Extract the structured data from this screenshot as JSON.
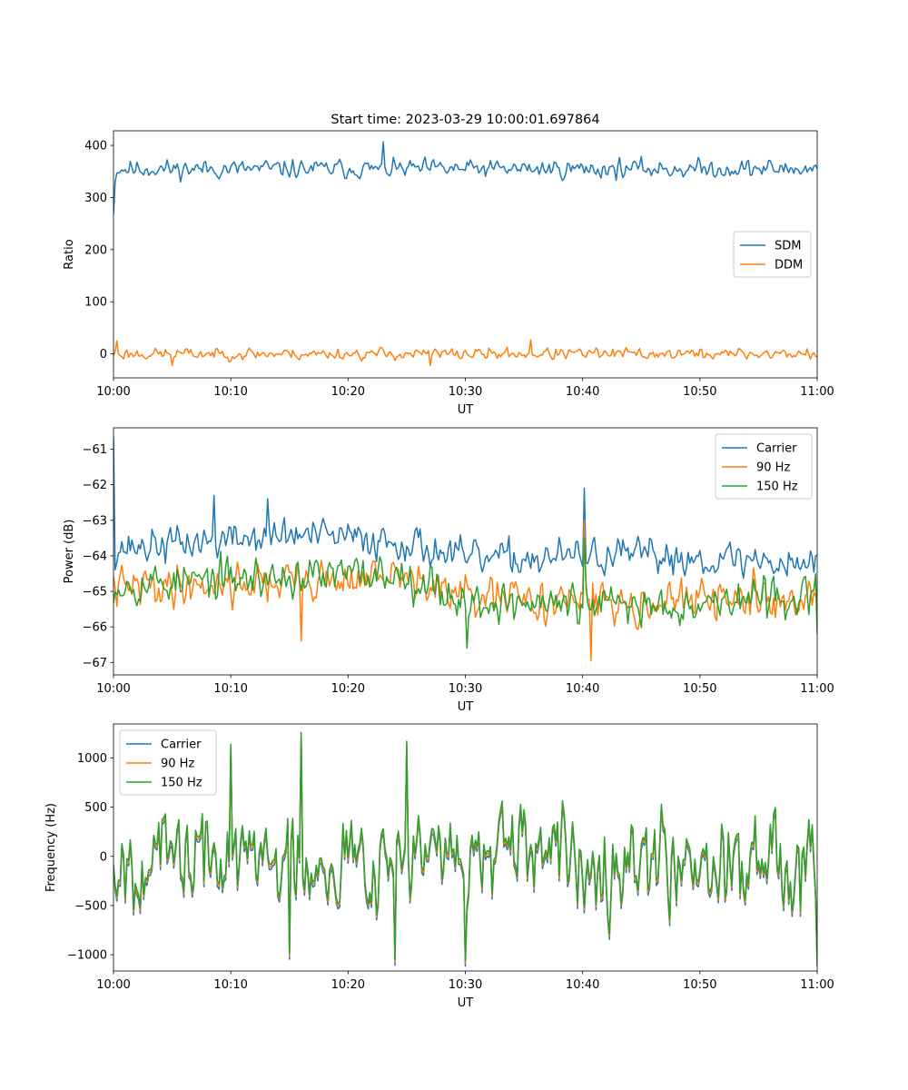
{
  "figure_title": "Start time: 2023-03-29 10:00:01.697864",
  "colors": {
    "blue": "#1f77b4",
    "orange": "#ff7f0e",
    "green": "#2ca02c"
  },
  "chart_data": [
    {
      "type": "line",
      "title": "Start time: 2023-03-29 10:00:01.697864",
      "xlabel": "UT",
      "ylabel": "Ratio",
      "xlim": [
        0,
        60
      ],
      "ylim": [
        -46,
        428
      ],
      "x_ticks": [
        0,
        10,
        20,
        30,
        40,
        50,
        60
      ],
      "x_tick_labels": [
        "10:00",
        "10:10",
        "10:20",
        "10:30",
        "10:40",
        "10:50",
        "11:00"
      ],
      "y_ticks": [
        0,
        100,
        200,
        300,
        400
      ],
      "y_tick_labels": [
        "0",
        "100",
        "200",
        "300",
        "400"
      ],
      "legend": "center-right",
      "grid": false,
      "series": [
        {
          "name": "SDM",
          "color": "#1f77b4",
          "mean": 355,
          "noise": 14,
          "spikes": [
            [
              0,
              268
            ],
            [
              0.2,
              330
            ],
            [
              23,
              407
            ]
          ],
          "seed": 11
        },
        {
          "name": "DDM",
          "color": "#ff7f0e",
          "mean": 0,
          "noise": 9,
          "spikes": [
            [
              0.3,
              25
            ],
            [
              35.5,
              27
            ],
            [
              5,
              -22
            ],
            [
              27,
              -22
            ]
          ],
          "seed": 23
        }
      ]
    },
    {
      "type": "line",
      "xlabel": "UT",
      "ylabel": "Power (dB)",
      "xlim": [
        0,
        60
      ],
      "ylim": [
        -67.35,
        -60.4
      ],
      "x_ticks": [
        0,
        10,
        20,
        30,
        40,
        50,
        60
      ],
      "x_tick_labels": [
        "10:00",
        "10:10",
        "10:20",
        "10:30",
        "10:40",
        "10:50",
        "11:00"
      ],
      "y_ticks": [
        -67,
        -66,
        -65,
        -64,
        -63,
        -62,
        -61
      ],
      "y_tick_labels": [
        "−67",
        "−66",
        "−65",
        "−64",
        "−63",
        "−62",
        "−61"
      ],
      "legend": "top-right",
      "grid": false,
      "series": [
        {
          "name": "Carrier",
          "color": "#1f77b4",
          "trend": [
            [
              0,
              -63.8
            ],
            [
              15,
              -63.4
            ],
            [
              25,
              -63.6
            ],
            [
              30,
              -64.1
            ],
            [
              45,
              -64.0
            ],
            [
              60,
              -64.2
            ]
          ],
          "noise": 0.4,
          "spikes": [
            [
              0.05,
              -60.65
            ],
            [
              40.2,
              -62.1
            ],
            [
              8.5,
              -62.3
            ],
            [
              13.1,
              -62.4
            ]
          ],
          "seed": 37
        },
        {
          "name": "90 Hz",
          "color": "#ff7f0e",
          "trend": [
            [
              0,
              -64.9
            ],
            [
              15,
              -64.7
            ],
            [
              25,
              -64.6
            ],
            [
              30,
              -65.2
            ],
            [
              45,
              -65.3
            ],
            [
              60,
              -65.2
            ]
          ],
          "noise": 0.45,
          "spikes": [
            [
              40.2,
              -63.0
            ],
            [
              40.7,
              -66.95
            ],
            [
              16,
              -66.4
            ]
          ],
          "seed": 41
        },
        {
          "name": "150 Hz",
          "color": "#2ca02c",
          "trend": [
            [
              0,
              -64.8
            ],
            [
              15,
              -64.6
            ],
            [
              25,
              -64.5
            ],
            [
              30,
              -65.3
            ],
            [
              45,
              -65.4
            ],
            [
              60,
              -65.1
            ]
          ],
          "noise": 0.45,
          "spikes": [
            [
              40.15,
              -63.5
            ],
            [
              30.1,
              -66.6
            ],
            [
              60,
              -66.2
            ]
          ],
          "seed": 53
        }
      ]
    },
    {
      "type": "line",
      "xlabel": "UT",
      "ylabel": "Frequency (Hz)",
      "xlim": [
        0,
        60
      ],
      "ylim": [
        -1165,
        1345
      ],
      "x_ticks": [
        0,
        10,
        20,
        30,
        40,
        50,
        60
      ],
      "x_tick_labels": [
        "10:00",
        "10:10",
        "10:20",
        "10:30",
        "10:40",
        "10:50",
        "11:00"
      ],
      "y_ticks": [
        -1000,
        -500,
        0,
        500,
        1000
      ],
      "y_tick_labels": [
        "−1000",
        "−500",
        "0",
        "500",
        "1000"
      ],
      "legend": "top-left",
      "grid": false,
      "series": [
        {
          "name": "Carrier",
          "color": "#1f77b4",
          "offset": -55
        },
        {
          "name": "90 Hz",
          "color": "#ff7f0e",
          "offset": -25
        },
        {
          "name": "150 Hz",
          "color": "#2ca02c",
          "offset": 0
        }
      ],
      "base": {
        "noise": 380,
        "seed": 67,
        "spikes": [
          [
            16,
            1260
          ],
          [
            25,
            1170
          ],
          [
            10,
            1140
          ],
          [
            24,
            -1050
          ],
          [
            30,
            -1060
          ],
          [
            60,
            -1060
          ],
          [
            15,
            -990
          ]
        ]
      }
    }
  ]
}
